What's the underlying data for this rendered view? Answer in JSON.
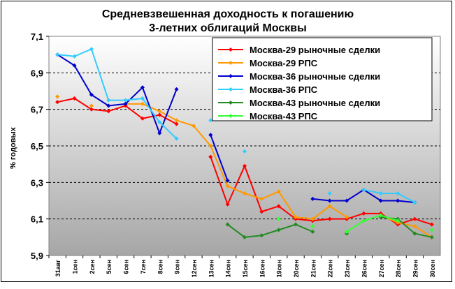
{
  "chart_data": {
    "type": "line",
    "title": "Средневзвешенная доходность к погашению",
    "subtitle": "3-летних облигаций Москвы",
    "ylabel": "% годовых",
    "xlabel": "",
    "ylim": [
      5.9,
      7.1
    ],
    "yticks": [
      "5,9",
      "6,1",
      "6,3",
      "6,5",
      "6,7",
      "6,9",
      "7,1"
    ],
    "grid": "horizontal dashed",
    "legend_position": "top-right",
    "categories": [
      "31авг",
      "1сен",
      "2сен",
      "5сен",
      "6сен",
      "7сен",
      "8сен",
      "9сен",
      "12сен",
      "13сен",
      "14сен",
      "15сен",
      "16сен",
      "19сен",
      "20сен",
      "21сен",
      "22сен",
      "23сен",
      "26сен",
      "27сен",
      "28сен",
      "29сен",
      "30сен"
    ],
    "series": [
      {
        "name": "Москва-29  рыночные сделки",
        "color": "#ff0000",
        "values": [
          6.74,
          6.76,
          6.7,
          6.69,
          6.72,
          6.65,
          6.67,
          6.62,
          null,
          6.44,
          6.18,
          6.39,
          6.14,
          6.17,
          6.1,
          6.09,
          6.1,
          6.1,
          6.13,
          6.13,
          6.07,
          6.1,
          6.07
        ]
      },
      {
        "name": "Москва-29  РПС",
        "color": "#ff9900",
        "values": [
          6.77,
          null,
          6.72,
          null,
          6.73,
          6.73,
          6.69,
          6.64,
          6.61,
          6.5,
          6.28,
          6.24,
          6.21,
          6.25,
          6.11,
          6.1,
          6.17,
          6.11,
          null,
          6.12,
          6.08,
          6.06,
          6.0
        ]
      },
      {
        "name": "Москва-36  рыночные сделки",
        "color": "#0000cc",
        "values": [
          7.0,
          6.94,
          6.78,
          6.72,
          6.73,
          6.82,
          6.57,
          6.81,
          null,
          6.56,
          6.31,
          null,
          null,
          null,
          null,
          6.21,
          6.2,
          6.2,
          6.26,
          6.2,
          6.2,
          6.19,
          null
        ]
      },
      {
        "name": "Москва-36  РПС",
        "color": "#33ccff",
        "values": [
          7.0,
          6.99,
          7.03,
          6.75,
          6.75,
          6.76,
          6.63,
          6.54,
          null,
          6.64,
          null,
          6.47,
          null,
          null,
          null,
          null,
          6.24,
          null,
          6.26,
          6.24,
          6.24,
          6.19,
          null
        ]
      },
      {
        "name": "Москва-43 рыночные сделки",
        "color": "#228b22",
        "values": [
          null,
          null,
          null,
          null,
          null,
          null,
          null,
          null,
          null,
          null,
          6.07,
          6.0,
          6.01,
          6.04,
          6.07,
          6.03,
          null,
          6.02,
          null,
          6.11,
          6.1,
          6.02,
          6.0
        ]
      },
      {
        "name": "Москва-43 РПС",
        "color": "#33ff33",
        "values": [
          null,
          null,
          null,
          null,
          null,
          null,
          null,
          null,
          null,
          null,
          null,
          null,
          null,
          6.1,
          null,
          6.06,
          null,
          6.03,
          6.09,
          6.12,
          6.09,
          null,
          6.04
        ]
      }
    ]
  }
}
